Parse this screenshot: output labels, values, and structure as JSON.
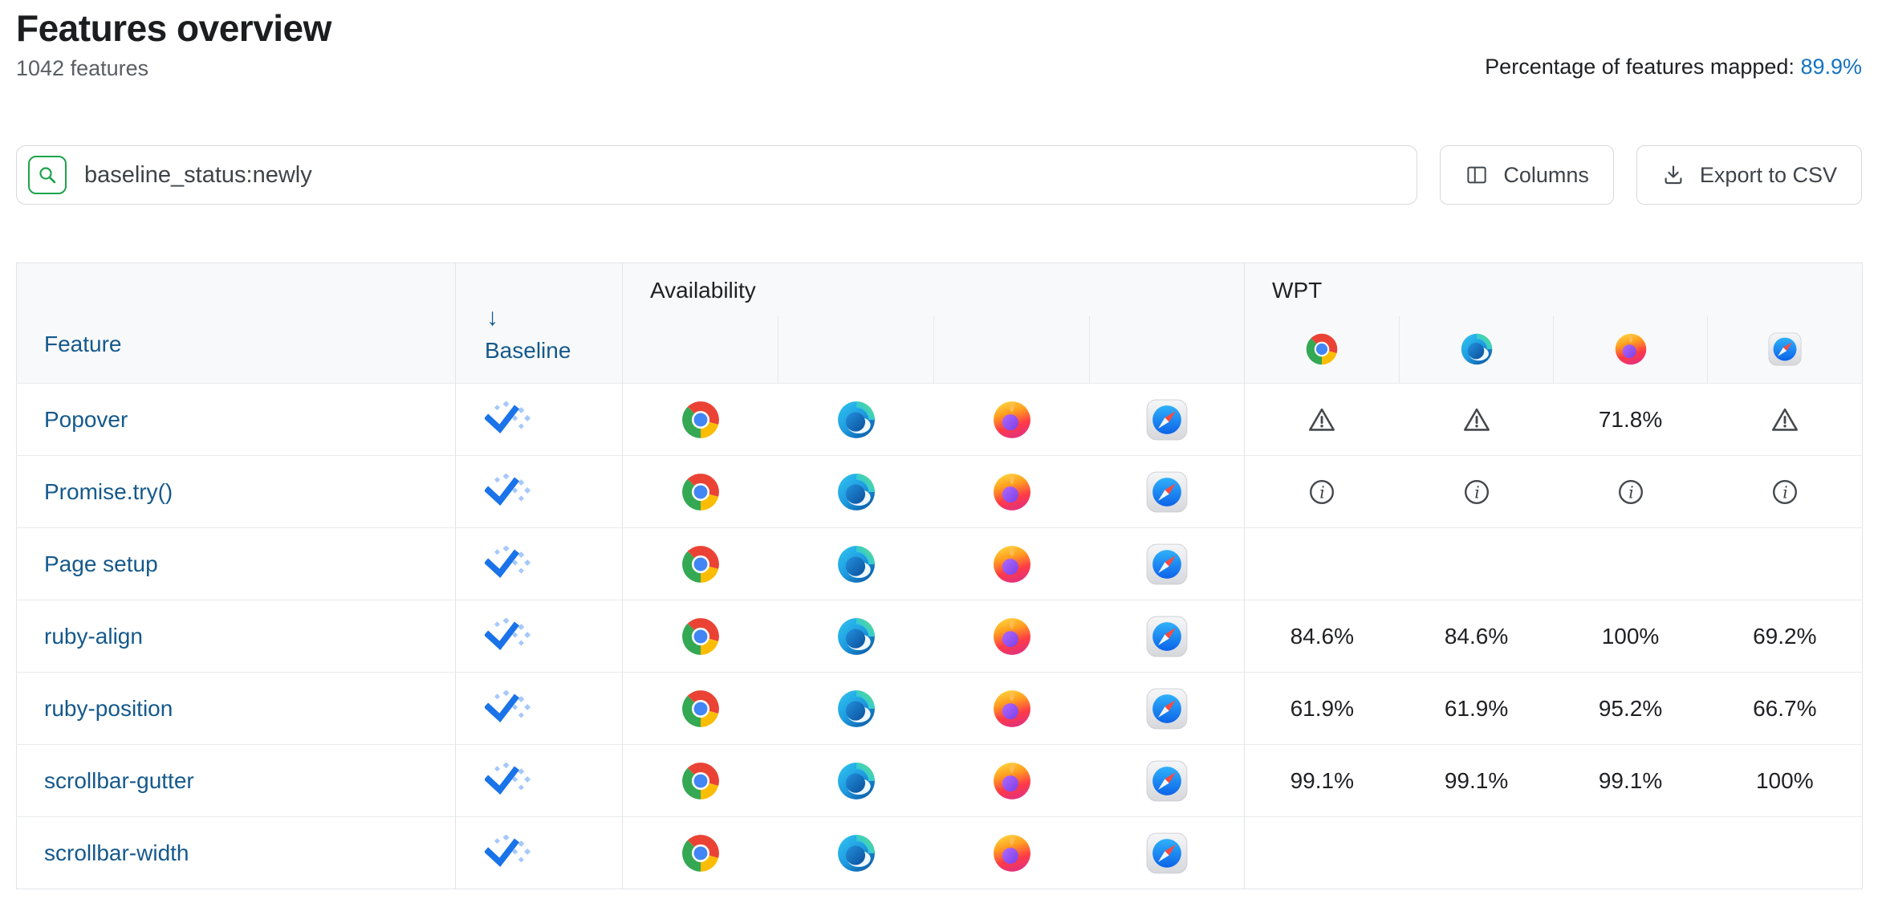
{
  "page": {
    "title": "Features overview",
    "feature_count": "1042 features",
    "mapped_label": "Percentage of features mapped: ",
    "mapped_value": "89.9%"
  },
  "toolbar": {
    "search_value": "baseline_status:newly",
    "columns_label": "Columns",
    "export_label": "Export to CSV"
  },
  "colors": {
    "accent_blue": "#1a73e8",
    "baseline_dot_blue": "#a6c8fa",
    "link_blue": "#15598c",
    "stat_link_blue": "#1573c0",
    "search_green": "#1da34c",
    "header_bg": "#f8f9fa",
    "border": "#e2e4e7"
  },
  "table": {
    "headers": {
      "feature": "Feature",
      "baseline": "Baseline",
      "sort_arrow": "↓",
      "availability_group": "Availability",
      "wpt_group": "WPT"
    },
    "browsers": [
      "chrome",
      "edge",
      "firefox",
      "safari"
    ],
    "rows": [
      {
        "feature": "Popover",
        "baseline": "newly",
        "availability": [
          "chrome",
          "edge",
          "firefox",
          "safari"
        ],
        "wpt": [
          {
            "type": "warning"
          },
          {
            "type": "warning"
          },
          {
            "type": "value",
            "text": "71.8%"
          },
          {
            "type": "warning"
          }
        ]
      },
      {
        "feature": "Promise.try()",
        "baseline": "newly",
        "availability": [
          "chrome",
          "edge",
          "firefox",
          "safari"
        ],
        "wpt": [
          {
            "type": "info"
          },
          {
            "type": "info"
          },
          {
            "type": "info"
          },
          {
            "type": "info"
          }
        ]
      },
      {
        "feature": "Page setup",
        "baseline": "newly",
        "availability": [
          "chrome",
          "edge",
          "firefox",
          "safari"
        ],
        "wpt": [
          {
            "type": "empty"
          },
          {
            "type": "empty"
          },
          {
            "type": "empty"
          },
          {
            "type": "empty"
          }
        ]
      },
      {
        "feature": "ruby-align",
        "baseline": "newly",
        "availability": [
          "chrome",
          "edge",
          "firefox",
          "safari"
        ],
        "wpt": [
          {
            "type": "value",
            "text": "84.6%"
          },
          {
            "type": "value",
            "text": "84.6%"
          },
          {
            "type": "value",
            "text": "100%"
          },
          {
            "type": "value",
            "text": "69.2%"
          }
        ]
      },
      {
        "feature": "ruby-position",
        "baseline": "newly",
        "availability": [
          "chrome",
          "edge",
          "firefox",
          "safari"
        ],
        "wpt": [
          {
            "type": "value",
            "text": "61.9%"
          },
          {
            "type": "value",
            "text": "61.9%"
          },
          {
            "type": "value",
            "text": "95.2%"
          },
          {
            "type": "value",
            "text": "66.7%"
          }
        ]
      },
      {
        "feature": "scrollbar-gutter",
        "baseline": "newly",
        "availability": [
          "chrome",
          "edge",
          "firefox",
          "safari"
        ],
        "wpt": [
          {
            "type": "value",
            "text": "99.1%"
          },
          {
            "type": "value",
            "text": "99.1%"
          },
          {
            "type": "value",
            "text": "99.1%"
          },
          {
            "type": "value",
            "text": "100%"
          }
        ]
      },
      {
        "feature": "scrollbar-width",
        "baseline": "newly",
        "availability": [
          "chrome",
          "edge",
          "firefox",
          "safari"
        ],
        "wpt": [
          {
            "type": "empty"
          },
          {
            "type": "empty"
          },
          {
            "type": "empty"
          },
          {
            "type": "empty"
          }
        ]
      }
    ]
  }
}
